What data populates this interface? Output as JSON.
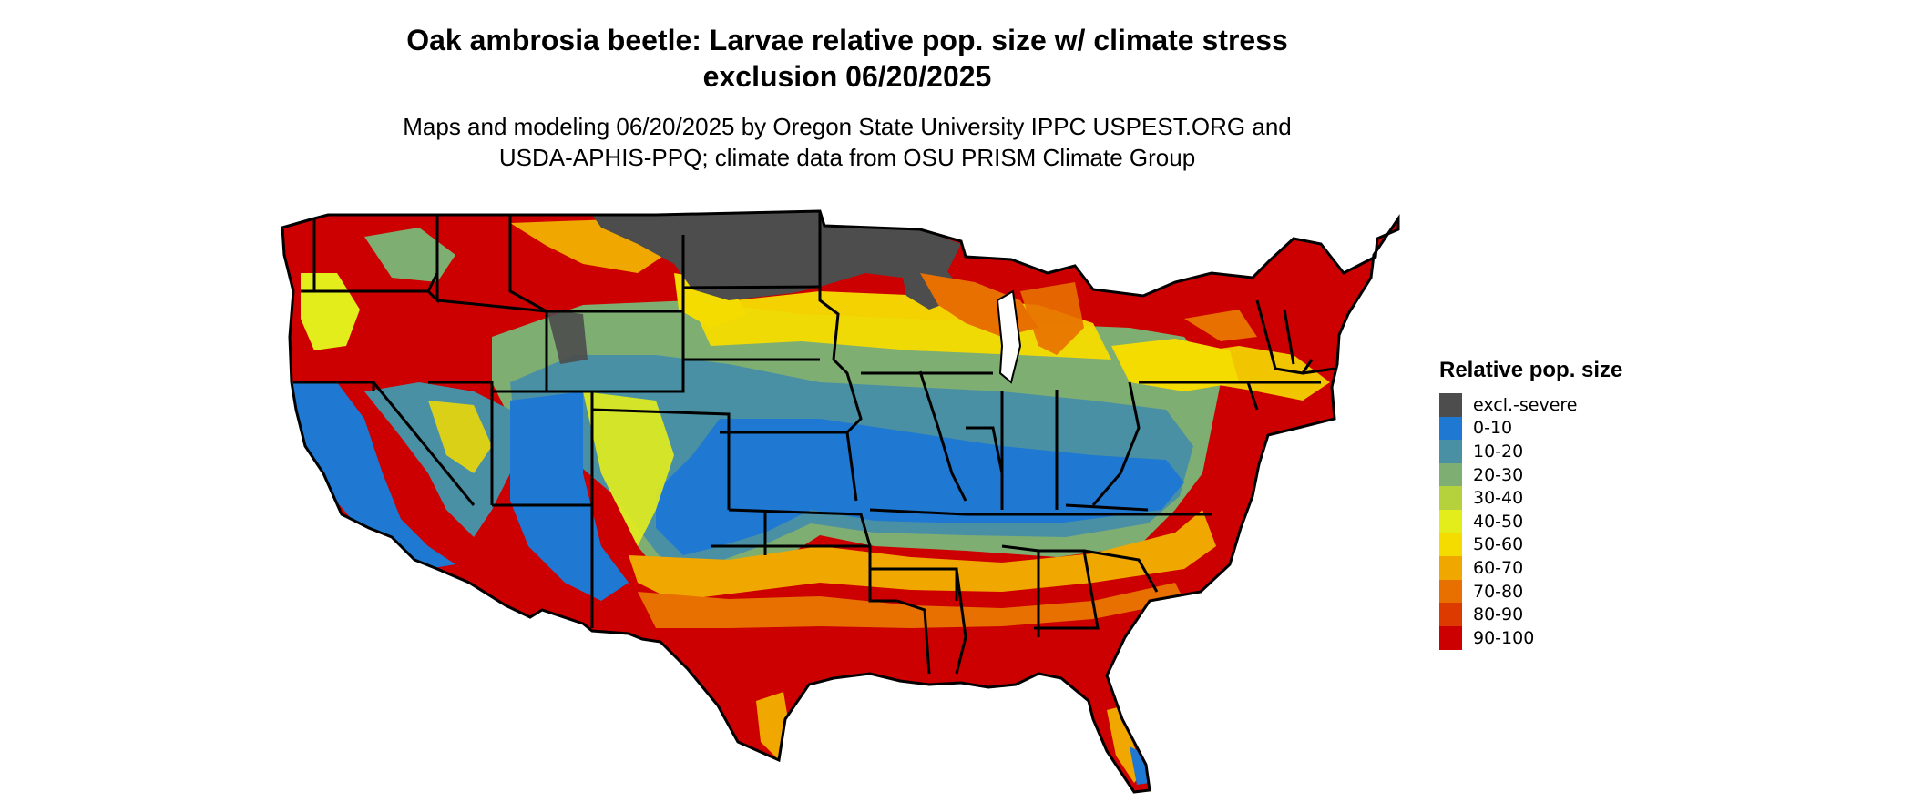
{
  "header": {
    "title_line1": "Oak ambrosia beetle: Larvae relative pop. size w/ climate stress",
    "title_line2": "exclusion 06/20/2025",
    "subtitle_line1": "Maps and modeling 06/20/2025 by Oregon State University IPPC USPEST.ORG and",
    "subtitle_line2": "USDA-APHIS-PPQ; climate data from OSU PRISM Climate Group"
  },
  "legend": {
    "title": "Relative pop. size",
    "items": [
      {
        "label": "excl.-severe",
        "color": "#4d4d4d"
      },
      {
        "label": "0-10",
        "color": "#1f78d1"
      },
      {
        "label": "10-20",
        "color": "#4a90a4"
      },
      {
        "label": "20-30",
        "color": "#7fae72"
      },
      {
        "label": "30-40",
        "color": "#b5d13c"
      },
      {
        "label": "40-50",
        "color": "#e3ed1c"
      },
      {
        "label": "50-60",
        "color": "#f5dc00"
      },
      {
        "label": "60-70",
        "color": "#f0a800"
      },
      {
        "label": "70-80",
        "color": "#e87000"
      },
      {
        "label": "80-90",
        "color": "#dd3a00"
      },
      {
        "label": "90-100",
        "color": "#cc0000"
      }
    ]
  }
}
